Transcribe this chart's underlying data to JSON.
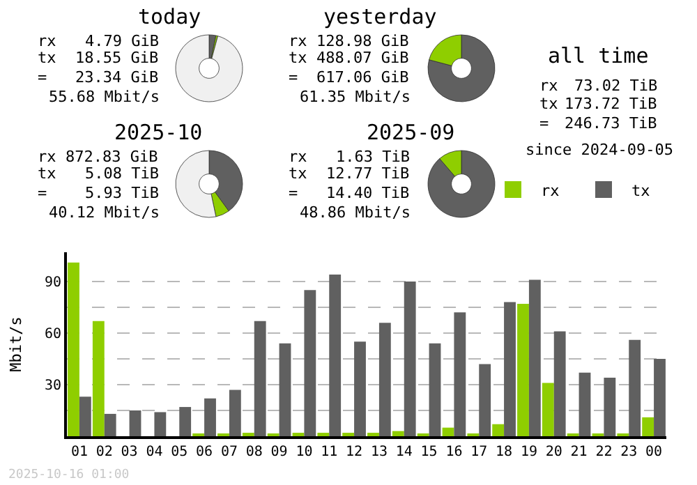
{
  "chart_data": [
    {
      "type": "donut",
      "title": "today",
      "categories": [
        null,
        null,
        null
      ],
      "values": [
        3.3,
        0.9,
        95.8
      ],
      "colors": [
        "#606060",
        "#8fce00",
        "#f0f0f0"
      ],
      "annotations": [
        "rx 4.79 GiB",
        "tx 18.55 GiB",
        "= 23.34 GiB",
        "55.68 Mbit/s"
      ]
    },
    {
      "type": "donut",
      "title": "yesterday",
      "categories": [
        null,
        null
      ],
      "values": [
        79.1,
        20.9
      ],
      "colors": [
        "#606060",
        "#8fce00"
      ],
      "annotations": [
        "rx 128.98 GiB",
        "tx 488.07 GiB",
        "= 617.06 GiB",
        "61.35 Mbit/s"
      ]
    },
    {
      "type": "other",
      "title": "all time",
      "annotations": [
        "rx 73.02 TiB",
        "tx 173.72 TiB",
        "= 246.73 TiB",
        "since 2024-09-05"
      ]
    },
    {
      "type": "donut",
      "title": "2025-10",
      "categories": [
        null,
        null,
        null
      ],
      "values": [
        40.0,
        6.7,
        53.3
      ],
      "colors": [
        "#606060",
        "#8fce00",
        "#f0f0f0"
      ],
      "annotations": [
        "rx 872.83 GiB",
        "tx 5.08 TiB",
        "= 5.93 TiB",
        "40.12 Mbit/s"
      ]
    },
    {
      "type": "donut",
      "title": "2025-09",
      "categories": [
        null,
        null
      ],
      "values": [
        88.7,
        11.3
      ],
      "colors": [
        "#606060",
        "#8fce00"
      ],
      "annotations": [
        "rx 1.63 TiB",
        "tx 12.77 TiB",
        "= 14.40 TiB",
        "48.86 Mbit/s"
      ]
    },
    {
      "type": "bar",
      "ylabel": "Mbit/s",
      "legend": "top right",
      "grid": "y",
      "categories": [
        "01",
        "02",
        "03",
        "04",
        "05",
        "06",
        "07",
        "08",
        "09",
        "10",
        "11",
        "12",
        "13",
        "14",
        "15",
        "16",
        "17",
        "18",
        "19",
        "20",
        "21",
        "22",
        "23",
        "00"
      ],
      "series": [
        {
          "name": "rx",
          "color": "#8fce00",
          "values": [
            101,
            67,
            0,
            0,
            0,
            1,
            1,
            2,
            1,
            2,
            2,
            2,
            2,
            3,
            1,
            5,
            1,
            7,
            77,
            31,
            1,
            1,
            1,
            11
          ]
        },
        {
          "name": "tx",
          "color": "#606060",
          "values": [
            23,
            13,
            15,
            14,
            17,
            22,
            27,
            67,
            54,
            85,
            94,
            55,
            66,
            90,
            54,
            72,
            42,
            78,
            91,
            61,
            37,
            34,
            56,
            45
          ]
        }
      ],
      "ylim": [
        0,
        107
      ],
      "yticks": [
        {
          "value": 15,
          "label": null
        },
        30,
        {
          "value": 45,
          "label": null
        },
        60,
        {
          "value": 75,
          "label": null
        },
        90
      ],
      "annotations": [
        "2025-10-16 01:00"
      ]
    }
  ]
}
